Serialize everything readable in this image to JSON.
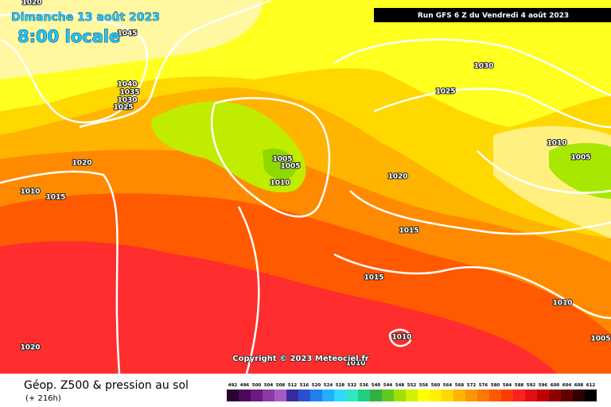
{
  "header": {
    "date": "Dimanche 13 août 2023",
    "time": "8:00 locale",
    "run": "Run GFS 6 Z du Vendredi 4 août 2023"
  },
  "isobars": [
    "1020",
    "1045",
    "1040",
    "1035",
    "1030",
    "1025",
    "1020",
    "1010",
    "1015",
    "1030",
    "1025",
    "1010",
    "1005",
    "1020",
    "1005",
    "1005",
    "1010",
    "1015",
    "1015",
    "1010",
    "1010",
    "1010",
    "1005",
    "1020"
  ],
  "copyright": "Copyright © 2023 Meteociel.fr",
  "footer": {
    "title": "Géop. Z500 & pression au sol",
    "lead": "(+ 216h)"
  },
  "legend": {
    "values": [
      492,
      496,
      500,
      504,
      508,
      512,
      516,
      520,
      524,
      528,
      532,
      536,
      540,
      544,
      548,
      552,
      556,
      560,
      564,
      568,
      572,
      576,
      580,
      584,
      588,
      592,
      596,
      600,
      604,
      608,
      612
    ]
  }
}
